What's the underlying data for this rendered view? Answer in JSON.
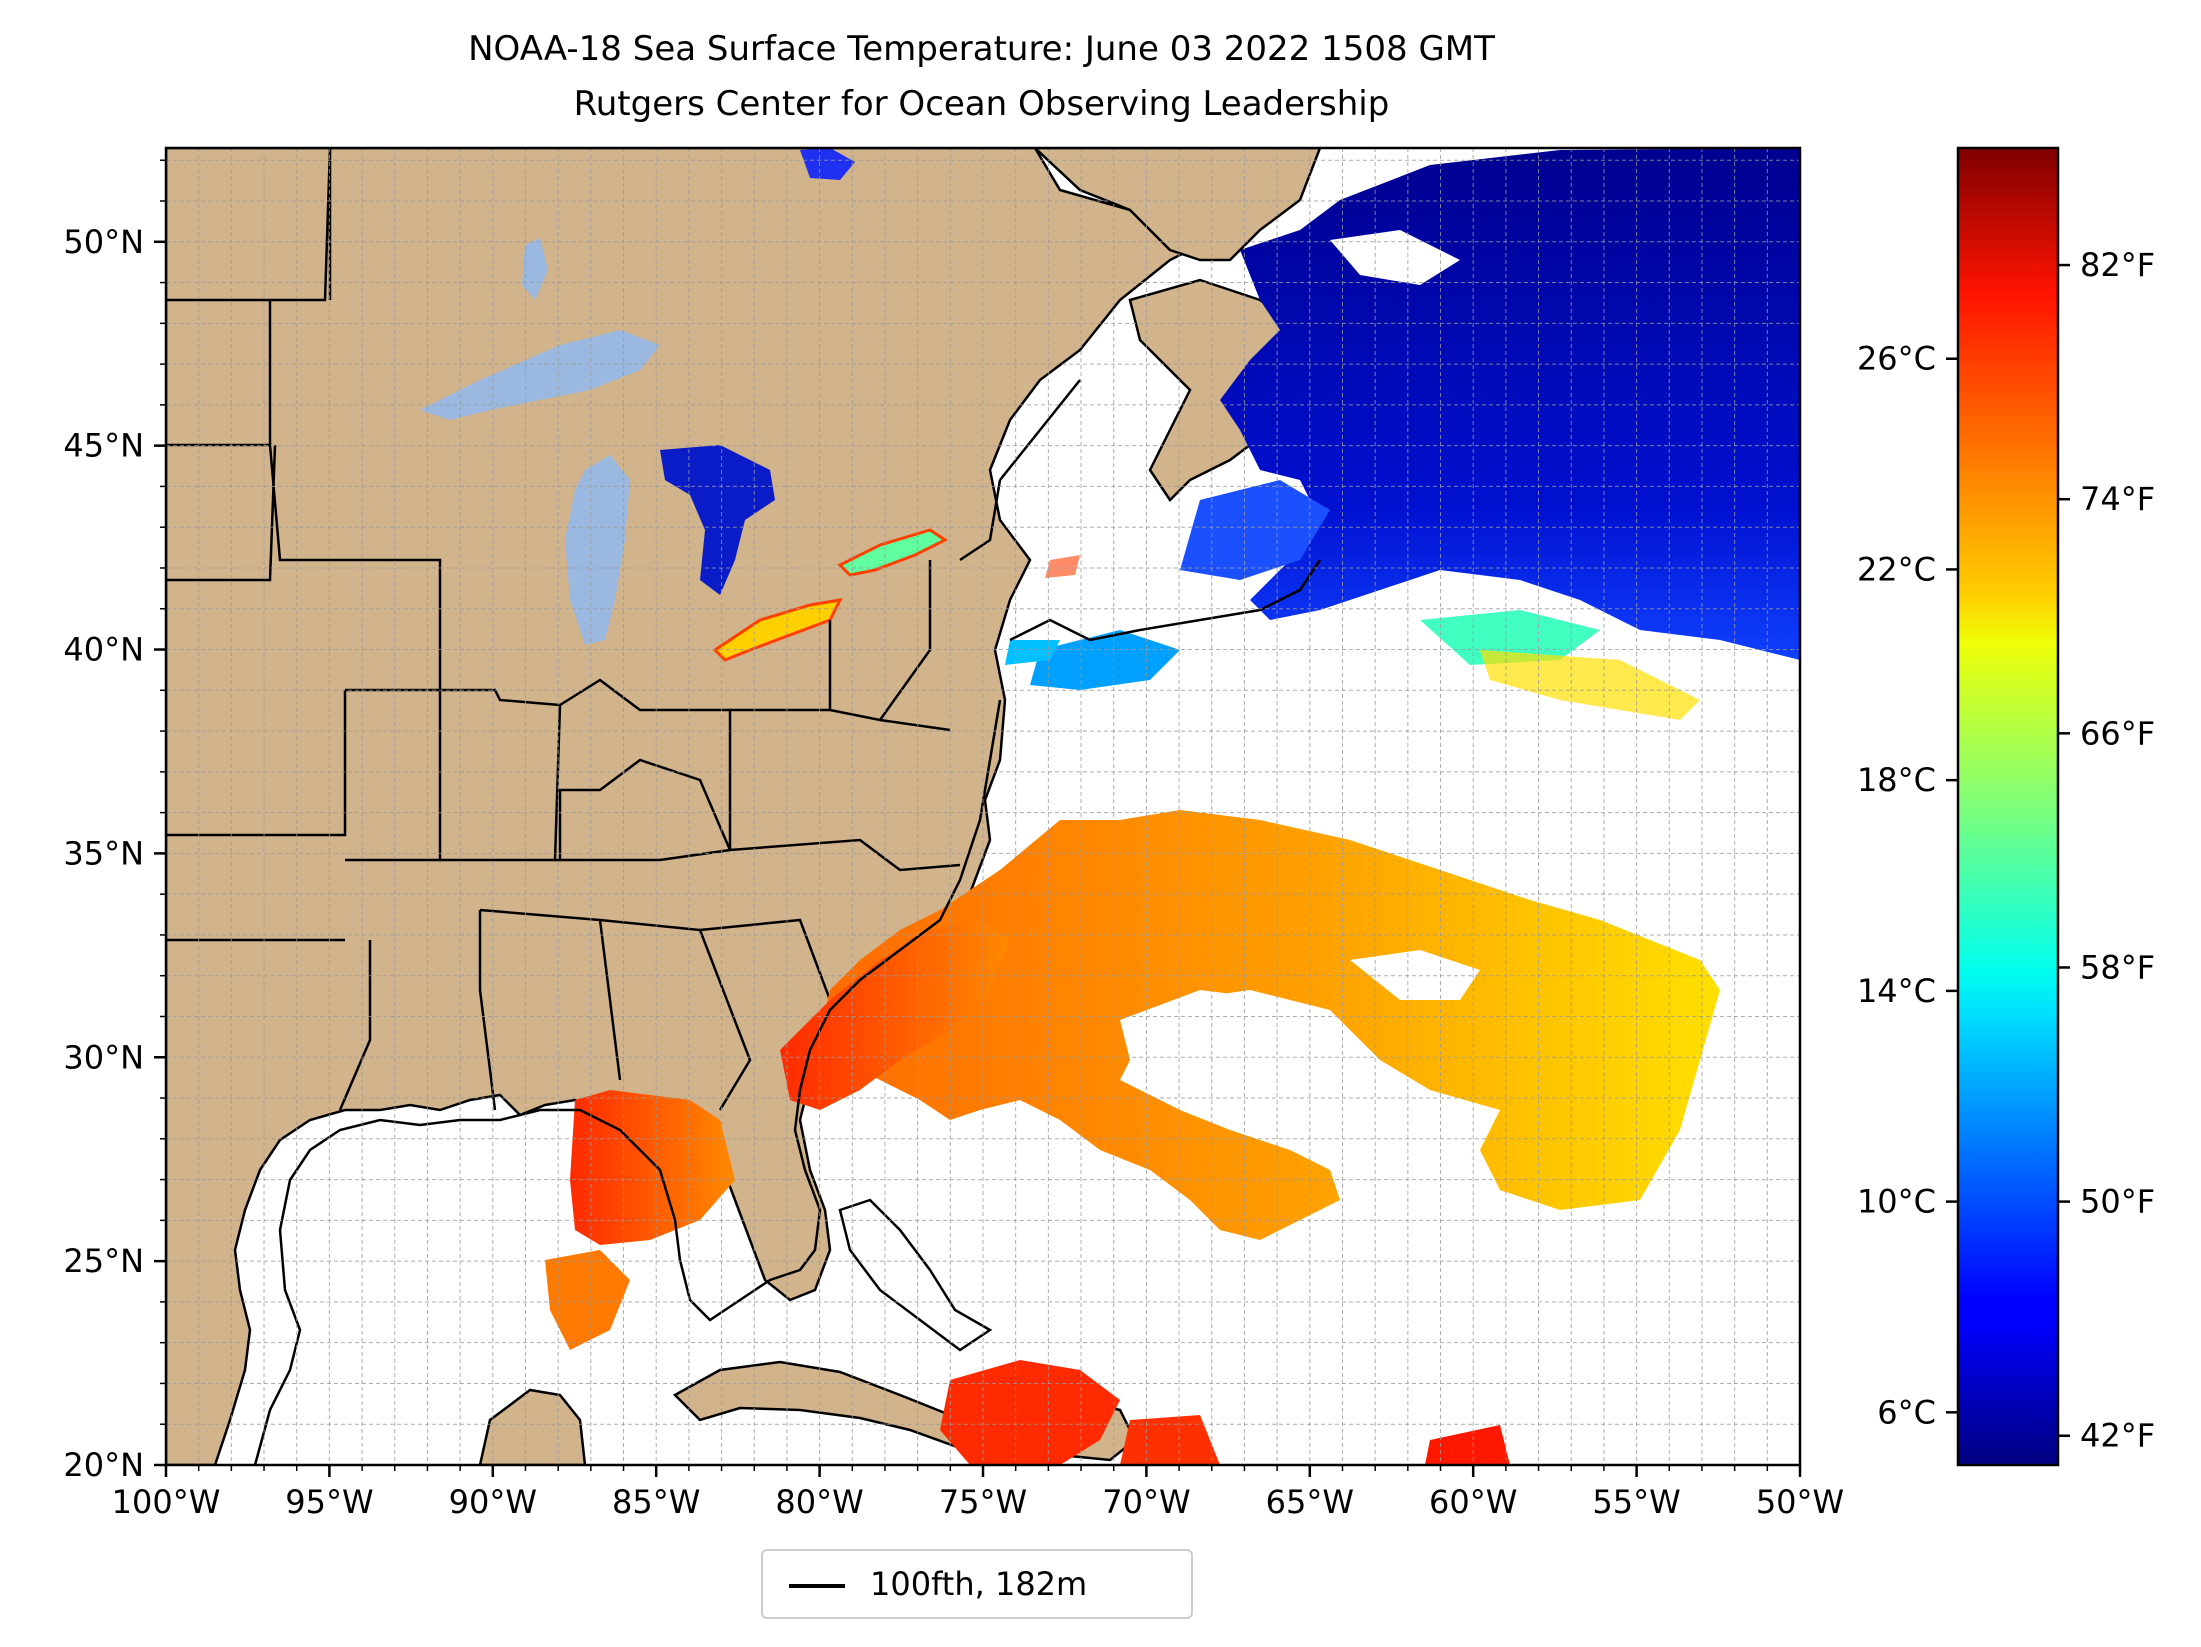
{
  "title": {
    "line1": "NOAA-18 Sea Surface Temperature: June 03 2022 1508 GMT",
    "line2": "Rutgers Center for Ocean Observing Leadership"
  },
  "map": {
    "lon_range": [
      -100,
      -50
    ],
    "lat_range": [
      20,
      52.3
    ],
    "lon_ticks": [
      -100,
      -95,
      -90,
      -85,
      -80,
      -75,
      -70,
      -65,
      -60,
      -55,
      -50
    ],
    "lon_tick_labels": [
      "100°W",
      "95°W",
      "90°W",
      "85°W",
      "80°W",
      "75°W",
      "70°W",
      "65°W",
      "60°W",
      "55°W",
      "50°W"
    ],
    "lat_ticks": [
      20,
      25,
      30,
      35,
      40,
      45,
      50
    ],
    "lat_tick_labels": [
      "20°N",
      "25°N",
      "30°N",
      "35°N",
      "40°N",
      "45°N",
      "50°N"
    ],
    "gridlines": "dashed gray, every 1°",
    "land_color": "#d2b48c",
    "lake_color": "#9bb8e0",
    "no_data_color": "#ffffff",
    "bathymetry_contour": "100 fathom"
  },
  "colorbar": {
    "colormap": "jet",
    "range_c": [
      5,
      30
    ],
    "celsius_ticks": [
      6,
      10,
      14,
      18,
      22,
      26
    ],
    "celsius_labels": [
      "6°C",
      "10°C",
      "14°C",
      "18°C",
      "22°C",
      "26°C"
    ],
    "fahrenheit_ticks": [
      42,
      50,
      58,
      66,
      74,
      82
    ],
    "fahrenheit_labels": [
      "42°F",
      "50°F",
      "58°F",
      "66°F",
      "74°F",
      "82°F"
    ]
  },
  "legend": {
    "label": "100fth, 182m"
  }
}
